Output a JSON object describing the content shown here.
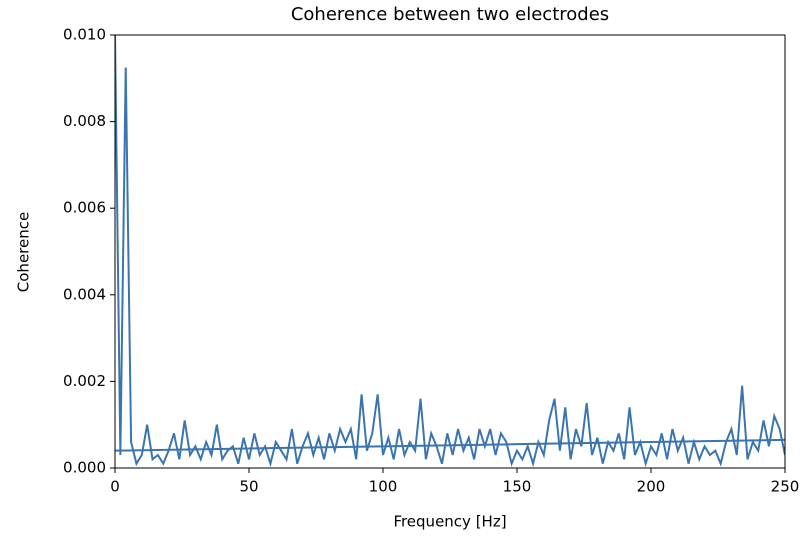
{
  "chart_data": {
    "type": "line",
    "title": "Coherence between two electrodes",
    "x_label": "Frequency [Hz]",
    "y_label": "Coherence",
    "xlim": [
      0,
      250
    ],
    "ylim": [
      0,
      0.01
    ],
    "xticks": [
      0,
      50,
      100,
      150,
      200,
      250
    ],
    "yticks": [
      {
        "value": 0,
        "label": "0.000"
      },
      {
        "value": 0.002,
        "label": "0.002"
      },
      {
        "value": 0.004,
        "label": "0.004"
      },
      {
        "value": 0.006,
        "label": "0.006"
      },
      {
        "value": 0.008,
        "label": "0.008"
      },
      {
        "value": 0.01,
        "label": "0.010"
      }
    ],
    "series": [
      {
        "color": "#3b75af",
        "x": [
          0,
          2,
          4,
          6,
          8,
          10,
          12,
          14,
          16,
          18,
          20,
          22,
          24,
          26,
          28,
          30,
          32,
          34,
          36,
          38,
          40,
          42,
          44,
          46,
          48,
          50,
          52,
          54,
          56,
          58,
          60,
          62,
          64,
          66,
          68,
          70,
          72,
          74,
          76,
          78,
          80,
          82,
          84,
          86,
          88,
          90,
          92,
          94,
          96,
          98,
          100,
          102,
          104,
          106,
          108,
          110,
          112,
          114,
          116,
          118,
          120,
          122,
          124,
          126,
          128,
          130,
          132,
          134,
          136,
          138,
          140,
          142,
          144,
          146,
          148,
          150,
          152,
          154,
          156,
          158,
          160,
          162,
          164,
          166,
          168,
          170,
          172,
          174,
          176,
          178,
          180,
          182,
          184,
          186,
          188,
          190,
          192,
          194,
          196,
          198,
          200,
          202,
          204,
          206,
          208,
          210,
          212,
          214,
          216,
          218,
          220,
          222,
          224,
          226,
          228,
          230,
          232,
          234,
          236,
          238,
          240,
          242,
          244,
          246,
          248,
          250
        ],
        "values": [
          0.01,
          0.0003,
          0.00925,
          0.0006,
          0.0001,
          0.0003,
          0.001,
          0.0002,
          0.0003,
          0.0001,
          0.0004,
          0.0008,
          0.0002,
          0.0011,
          0.0003,
          0.0005,
          0.0002,
          0.0006,
          0.0003,
          0.001,
          0.0002,
          0.0004,
          0.0005,
          0.0001,
          0.0007,
          0.0002,
          0.0008,
          0.0003,
          0.0005,
          0.0001,
          0.0006,
          0.0004,
          0.0002,
          0.0009,
          0.0001,
          0.0005,
          0.0008,
          0.0003,
          0.0007,
          0.0002,
          0.0008,
          0.0004,
          0.0009,
          0.0006,
          0.0009,
          0.0002,
          0.0017,
          0.0004,
          0.0008,
          0.0017,
          0.0003,
          0.0007,
          0.0002,
          0.0009,
          0.0003,
          0.0006,
          0.0004,
          0.0016,
          0.0002,
          0.0008,
          0.0005,
          0.0001,
          0.0008,
          0.0003,
          0.0009,
          0.0004,
          0.0007,
          0.0002,
          0.0009,
          0.0005,
          0.0009,
          0.0003,
          0.0008,
          0.0006,
          0.0001,
          0.0004,
          0.0002,
          0.0005,
          0.0001,
          0.0006,
          0.0003,
          0.0011,
          0.0016,
          0.0004,
          0.0014,
          0.0002,
          0.0009,
          0.0005,
          0.0015,
          0.0003,
          0.0007,
          0.0001,
          0.0006,
          0.0004,
          0.0008,
          0.0002,
          0.0014,
          0.0003,
          0.0006,
          0.0001,
          0.0005,
          0.0003,
          0.0008,
          0.0002,
          0.0009,
          0.0004,
          0.0007,
          0.0001,
          0.0006,
          0.0002,
          0.0005,
          0.0003,
          0.0004,
          0.0001,
          0.0006,
          0.0009,
          0.0003,
          0.0019,
          0.0002,
          0.0006,
          0.0004,
          0.0011,
          0.0005,
          0.0012,
          0.0009,
          0.0003
        ]
      },
      {
        "color": "#3b75af",
        "x": [
          0,
          50,
          100,
          150,
          200,
          250
        ],
        "values": [
          0.0004,
          0.00045,
          0.0005,
          0.00055,
          0.0006,
          0.00065
        ]
      }
    ]
  }
}
